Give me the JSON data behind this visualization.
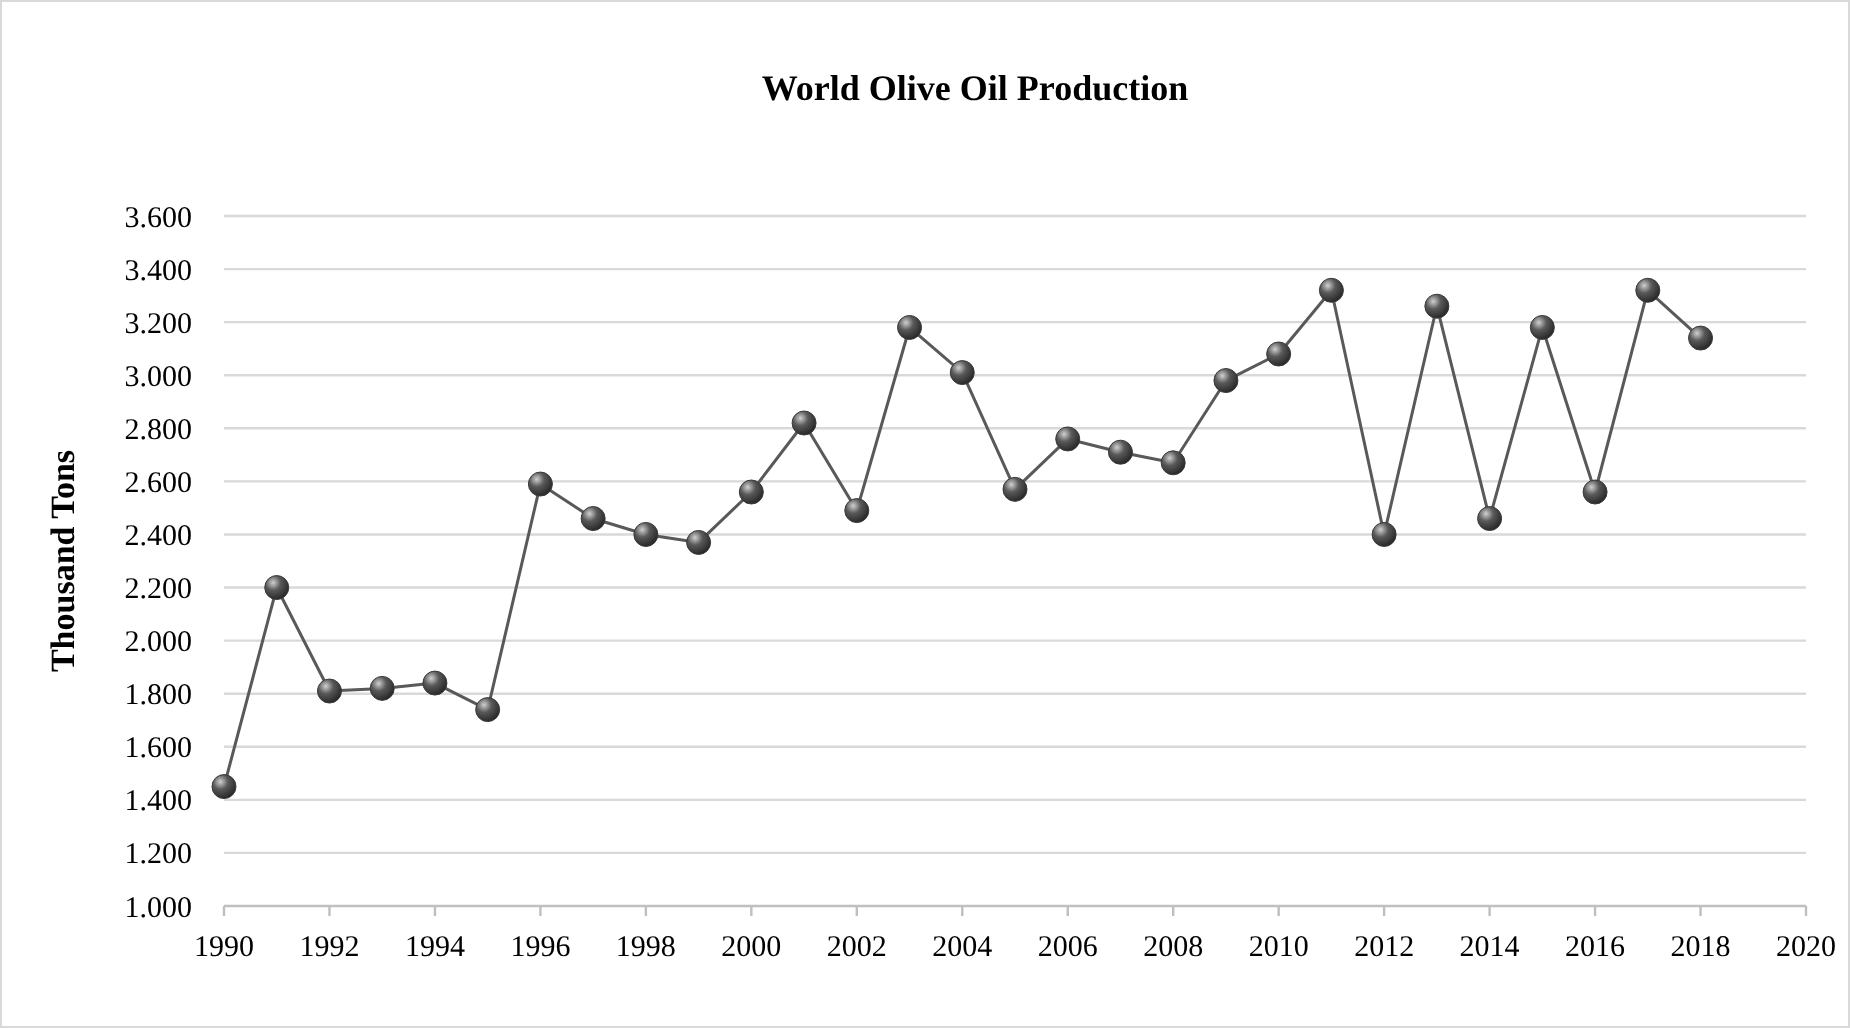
{
  "chart_data": {
    "type": "line",
    "title": "World Olive Oil Production",
    "ylabel": "Thousand Tons",
    "x": [
      1990,
      1991,
      1992,
      1993,
      1994,
      1995,
      1996,
      1997,
      1998,
      1999,
      2000,
      2001,
      2002,
      2003,
      2004,
      2005,
      2006,
      2007,
      2008,
      2009,
      2010,
      2011,
      2012,
      2013,
      2014,
      2015,
      2016,
      2017,
      2018
    ],
    "series": [
      {
        "color": "#595959",
        "values": [
          1450,
          2200,
          1810,
          1820,
          1840,
          1740,
          2590,
          2460,
          2400,
          2370,
          2560,
          2820,
          2490,
          3180,
          3010,
          2570,
          2760,
          2710,
          2670,
          2980,
          3080,
          3320,
          2400,
          3260,
          2460,
          3180,
          2560,
          3320,
          3140
        ]
      }
    ],
    "xlim": [
      1990,
      2020
    ],
    "xticks": [
      1990,
      1992,
      1994,
      1996,
      1998,
      2000,
      2002,
      2004,
      2006,
      2008,
      2010,
      2012,
      2014,
      2016,
      2018,
      2020
    ],
    "ylim": [
      1000,
      3600
    ],
    "yticks": [
      {
        "value": 1000,
        "label": "1.000"
      },
      {
        "value": 1200,
        "label": "1.200"
      },
      {
        "value": 1400,
        "label": "1.400"
      },
      {
        "value": 1600,
        "label": "1.600"
      },
      {
        "value": 1800,
        "label": "1.800"
      },
      {
        "value": 2000,
        "label": "2.000"
      },
      {
        "value": 2200,
        "label": "2.200"
      },
      {
        "value": 2400,
        "label": "2.400"
      },
      {
        "value": 2600,
        "label": "2.600"
      },
      {
        "value": 2800,
        "label": "2.800"
      },
      {
        "value": 3000,
        "label": "3.000"
      },
      {
        "value": 3200,
        "label": "3.200"
      },
      {
        "value": 3400,
        "label": "3.400"
      },
      {
        "value": 3600,
        "label": "3.600"
      }
    ],
    "grid": "y",
    "marker": "circle",
    "line_style": "solid"
  }
}
